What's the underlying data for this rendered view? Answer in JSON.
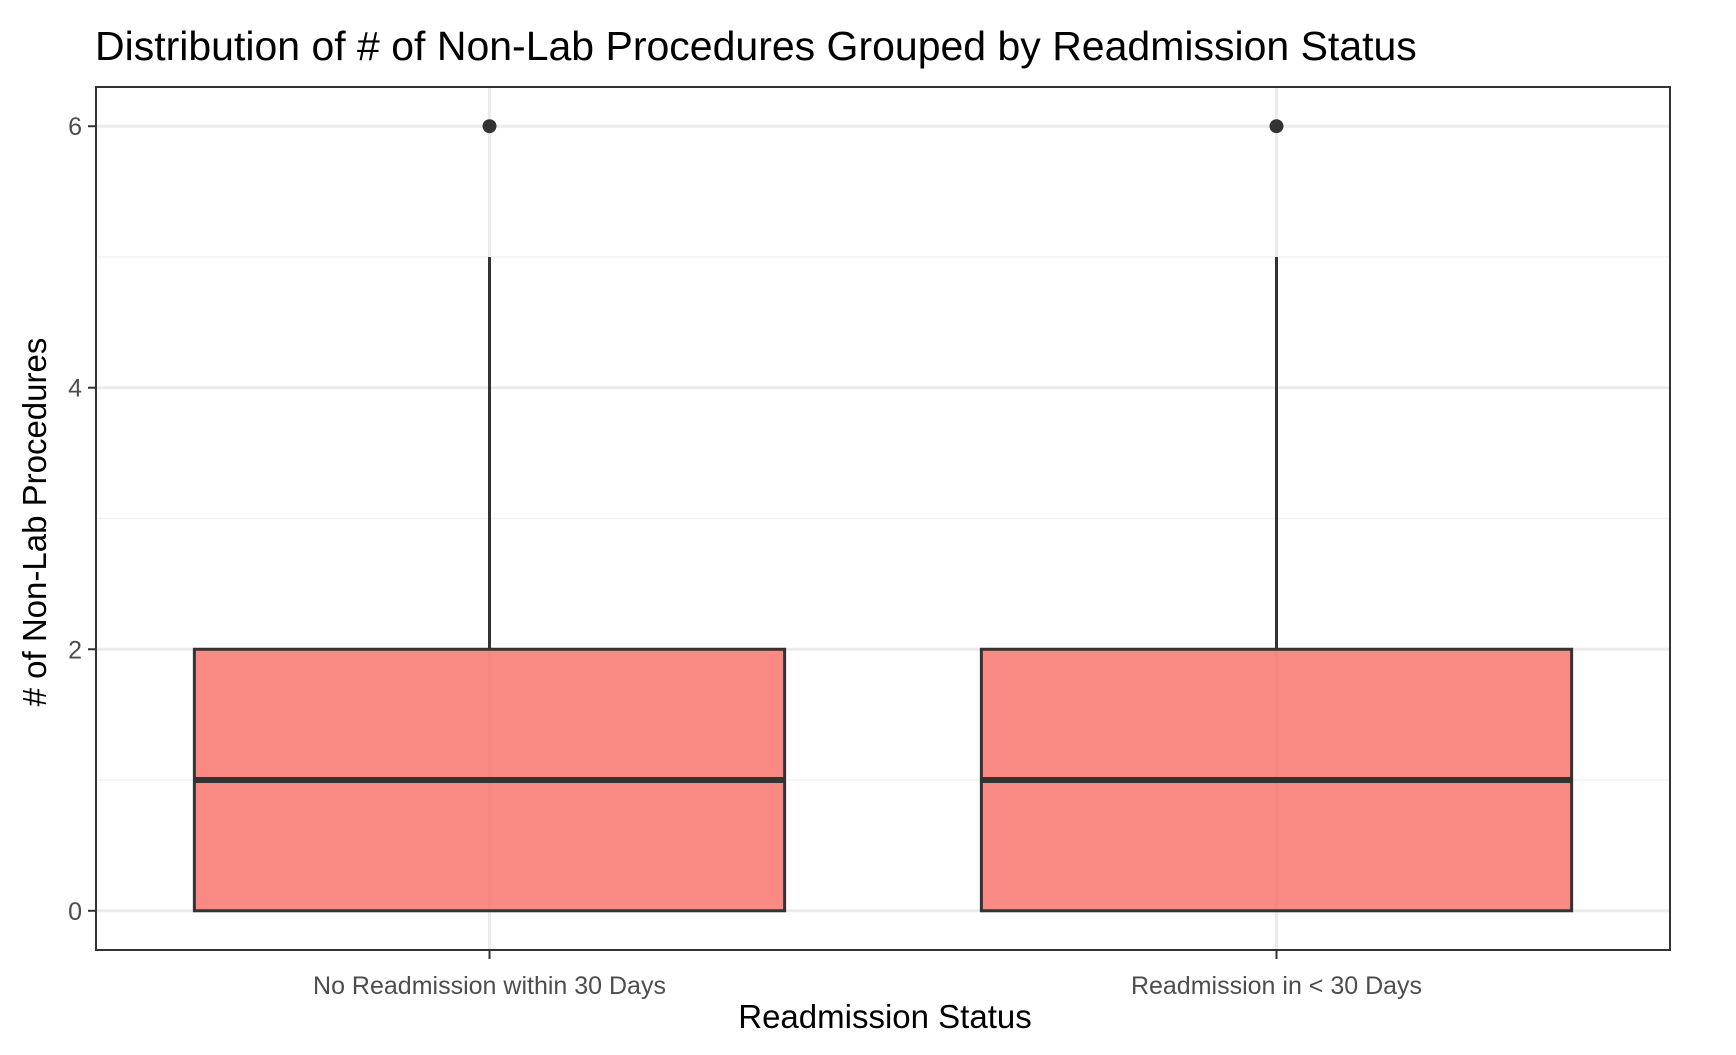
{
  "chart_data": {
    "type": "boxplot",
    "title": "Distribution of # of Non-Lab Procedures Grouped by Readmission Status",
    "xlabel": "Readmission Status",
    "ylabel": "# of Non-Lab Procedures",
    "categories": [
      "No Readmission within 30 Days",
      "Readmission in < 30 Days"
    ],
    "boxes": [
      {
        "category": "No Readmission within 30 Days",
        "min": 0,
        "q1": 0,
        "median": 1,
        "q3": 2,
        "whisker_low": 0,
        "whisker_high": 5,
        "outliers": [
          6
        ]
      },
      {
        "category": "Readmission in < 30 Days",
        "min": 0,
        "q1": 0,
        "median": 1,
        "q3": 2,
        "whisker_low": 0,
        "whisker_high": 5,
        "outliers": [
          6
        ]
      }
    ],
    "y_ticks": [
      0,
      2,
      4,
      6
    ],
    "y_minor_ticks": [
      1,
      3,
      5
    ],
    "ylim": [
      -0.3,
      6.3
    ],
    "grid": true,
    "legend": "none",
    "colors": {
      "box_fill": "#F8766D",
      "box_fill_opacity": 0.85,
      "box_stroke": "#333333",
      "grid_major": "#ebebeb",
      "grid_minor": "#f2f2f2",
      "panel_border": "#333333"
    }
  }
}
